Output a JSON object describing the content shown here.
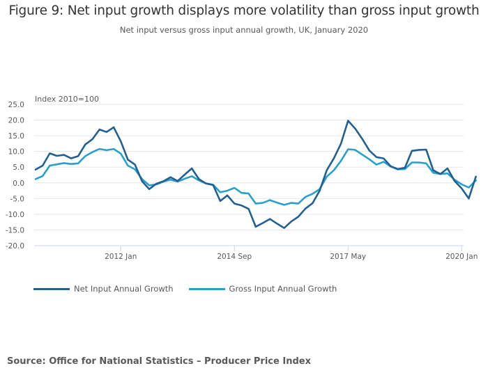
{
  "title": "Figure 9: Net input growth displays more volatility than gross input growth",
  "subtitle": "Net input versus gross input annual growth, UK, January 2020",
  "source": "Source: Office for National Statistics – Producer Price Index",
  "chart_data": {
    "type": "line",
    "title": "Figure 9: Net input growth displays more volatility than gross input growth",
    "subtitle": "Net input versus gross input annual growth, UK, January 2020",
    "ylabel": "Index 2010=100",
    "xlabel": "",
    "ylim": [
      -20,
      25
    ],
    "yticks": [
      "25.0",
      "20.0",
      "15.0",
      "10.0",
      "5.0",
      "0.0",
      "-5.0",
      "-10.0",
      "-15.0",
      "-20.0"
    ],
    "ytick_values": [
      25,
      20,
      15,
      10,
      5,
      0,
      -5,
      -10,
      -15,
      -20
    ],
    "xticks": [
      "2012 Jan",
      "2014 Sep",
      "2017 May",
      "2020 Jan"
    ],
    "xtick_months": [
      24,
      56,
      88,
      120
    ],
    "x_start": "2010 Jan",
    "x_step_months": 2,
    "grid": true,
    "legend": "bottom-left",
    "series": [
      {
        "name": "Net Input Annual Growth",
        "color": "#206095",
        "values": [
          4.2,
          5.5,
          9.4,
          8.6,
          8.9,
          7.8,
          8.5,
          12.2,
          13.9,
          17.0,
          16.2,
          17.7,
          13.2,
          7.4,
          5.8,
          0.5,
          -2.0,
          -0.3,
          0.5,
          1.8,
          0.6,
          2.6,
          4.6,
          1.2,
          -0.2,
          -0.7,
          -5.8,
          -4.0,
          -6.6,
          -7.2,
          -8.3,
          -14.0,
          -12.8,
          -11.5,
          -13.0,
          -14.4,
          -12.3,
          -10.8,
          -8.2,
          -6.5,
          -2.5,
          4.0,
          7.8,
          12.5,
          19.8,
          17.3,
          14.0,
          10.3,
          8.2,
          7.8,
          5.3,
          4.4,
          4.8,
          10.2,
          10.5,
          10.6,
          4.0,
          2.8,
          4.6,
          0.6,
          -1.8,
          -5.0,
          2.0
        ]
      },
      {
        "name": "Gross Input Annual Growth",
        "color": "#27a0cc",
        "values": [
          1.2,
          2.2,
          5.5,
          5.9,
          6.3,
          6.0,
          6.2,
          8.5,
          9.8,
          10.8,
          10.4,
          10.8,
          9.3,
          5.5,
          4.3,
          1.2,
          -0.8,
          -0.5,
          0.4,
          1.0,
          0.4,
          1.3,
          2.1,
          0.8,
          -0.2,
          -0.6,
          -3.0,
          -2.5,
          -1.6,
          -3.2,
          -3.4,
          -6.6,
          -6.4,
          -5.5,
          -6.3,
          -7.0,
          -6.4,
          -6.6,
          -4.5,
          -3.5,
          -2.0,
          2.0,
          4.0,
          7.0,
          10.7,
          10.5,
          9.0,
          7.5,
          5.8,
          6.7,
          5.2,
          4.3,
          4.4,
          6.5,
          6.5,
          6.2,
          3.2,
          2.8,
          3.0,
          1.0,
          -0.5,
          -1.5,
          0.8
        ]
      }
    ]
  }
}
